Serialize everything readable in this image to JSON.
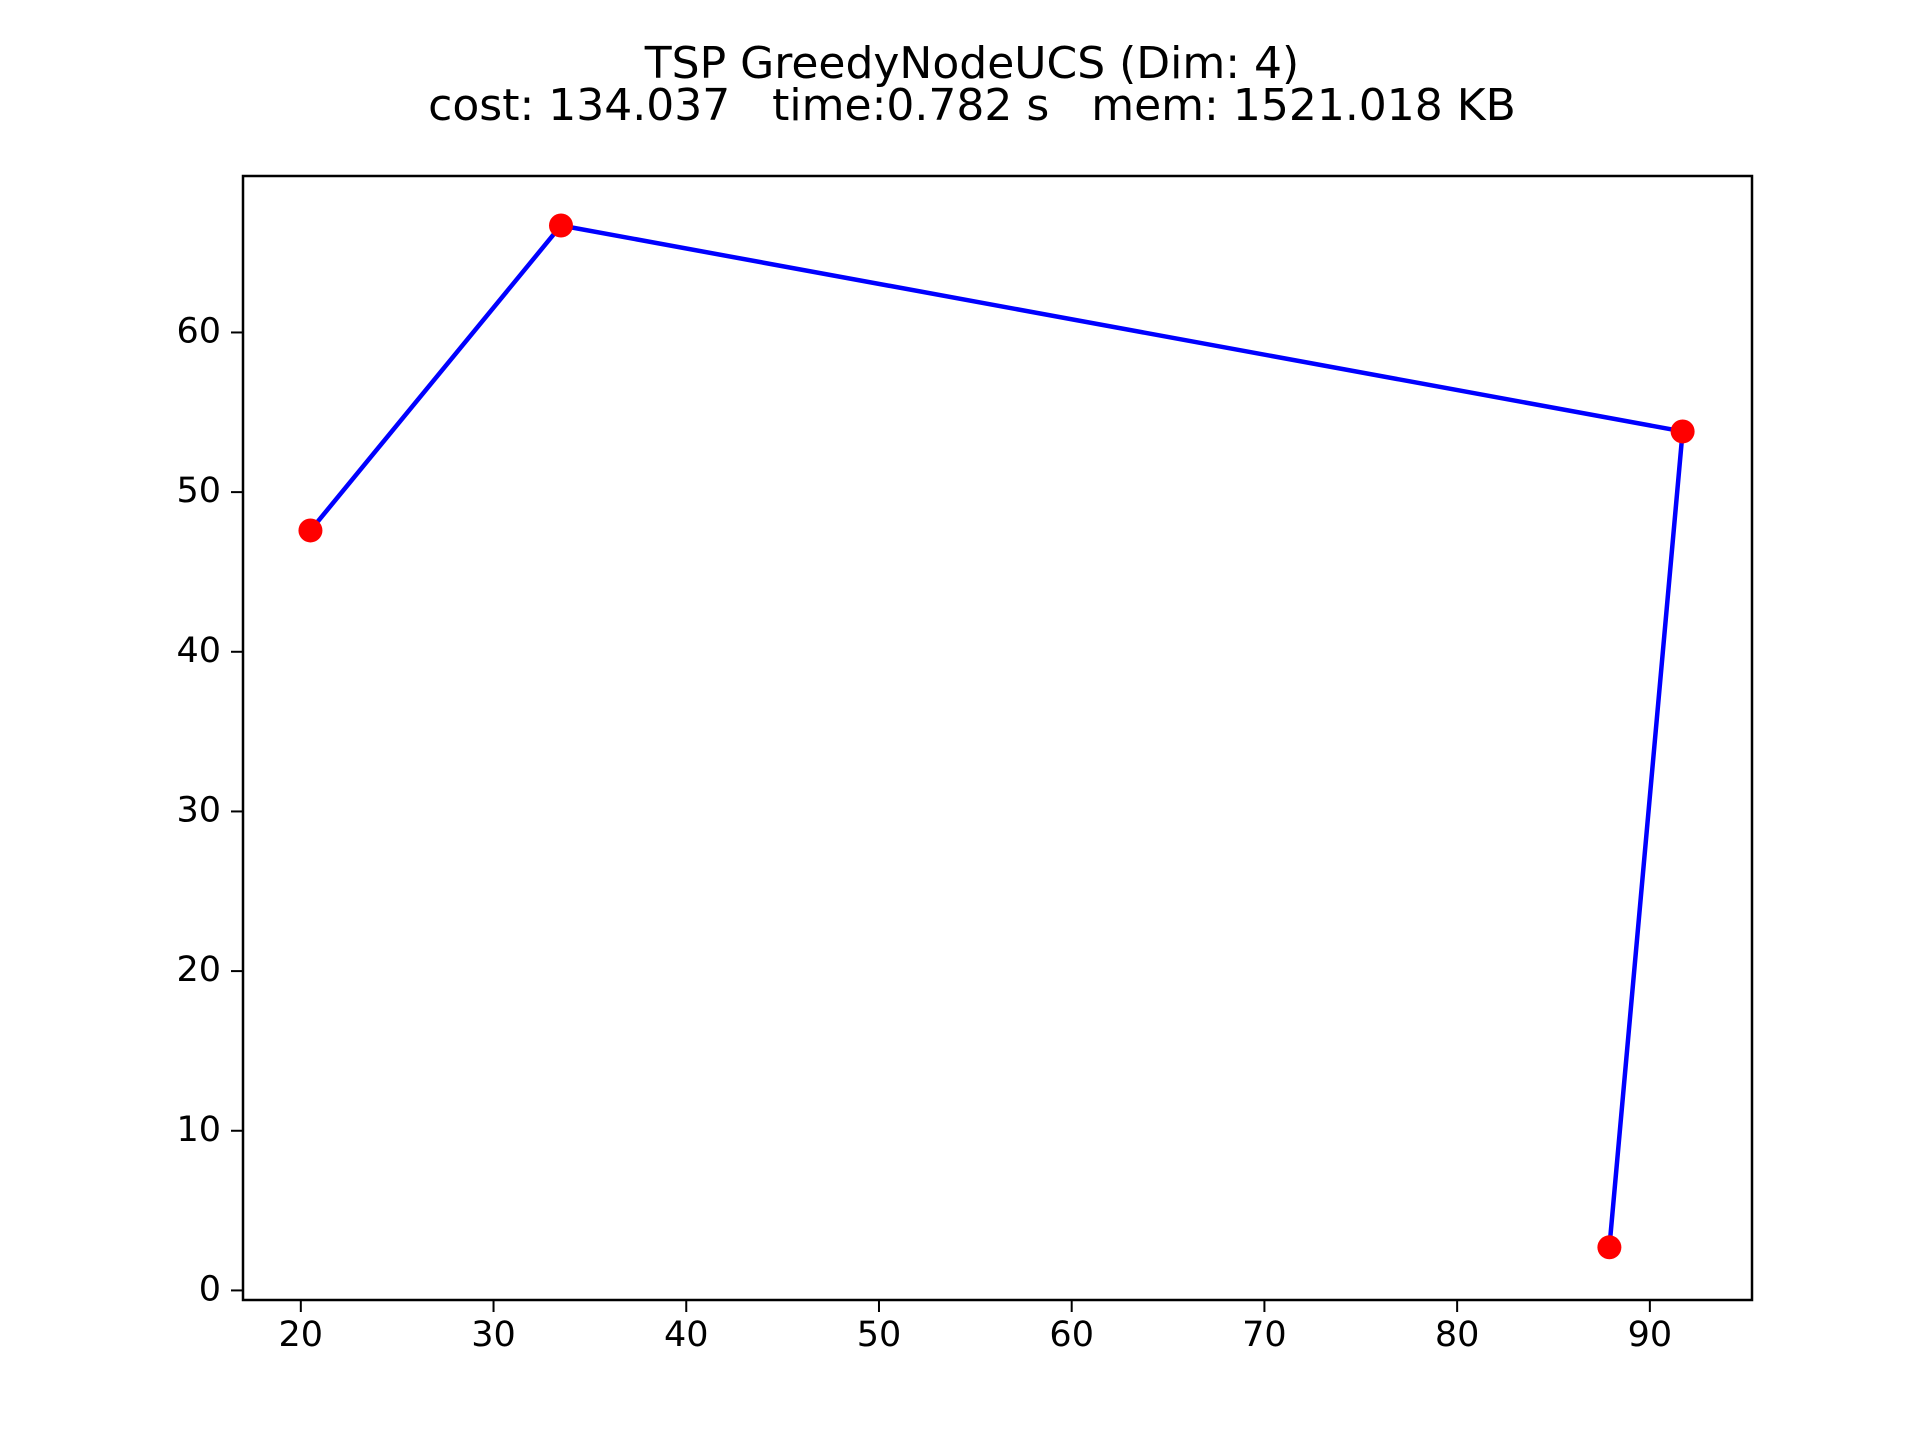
{
  "chart_data": {
    "type": "line",
    "title": "TSP GreedyNodeUCS (Dim: 4)",
    "subtitle": "cost: 134.037   time:0.782 s   mem: 1521.018 KB",
    "xlabel": "",
    "ylabel": "",
    "xlim": [
      17,
      95.3
    ],
    "ylim": [
      -0.6,
      69.8
    ],
    "x_ticks": [
      20,
      30,
      40,
      50,
      60,
      70,
      80,
      90
    ],
    "y_ticks": [
      0,
      10,
      20,
      30,
      40,
      50,
      60
    ],
    "grid": false,
    "legend": "none",
    "path": {
      "x": [
        20.5,
        33.5,
        91.7,
        87.9
      ],
      "y": [
        47.6,
        66.7,
        53.8,
        2.7
      ]
    },
    "points": {
      "x": [
        20.5,
        33.5,
        91.7,
        87.9
      ],
      "y": [
        47.6,
        66.7,
        53.8,
        2.7
      ]
    },
    "colors": {
      "line": "#0000ff",
      "points": "#ff0000",
      "axes": "#000000"
    }
  }
}
